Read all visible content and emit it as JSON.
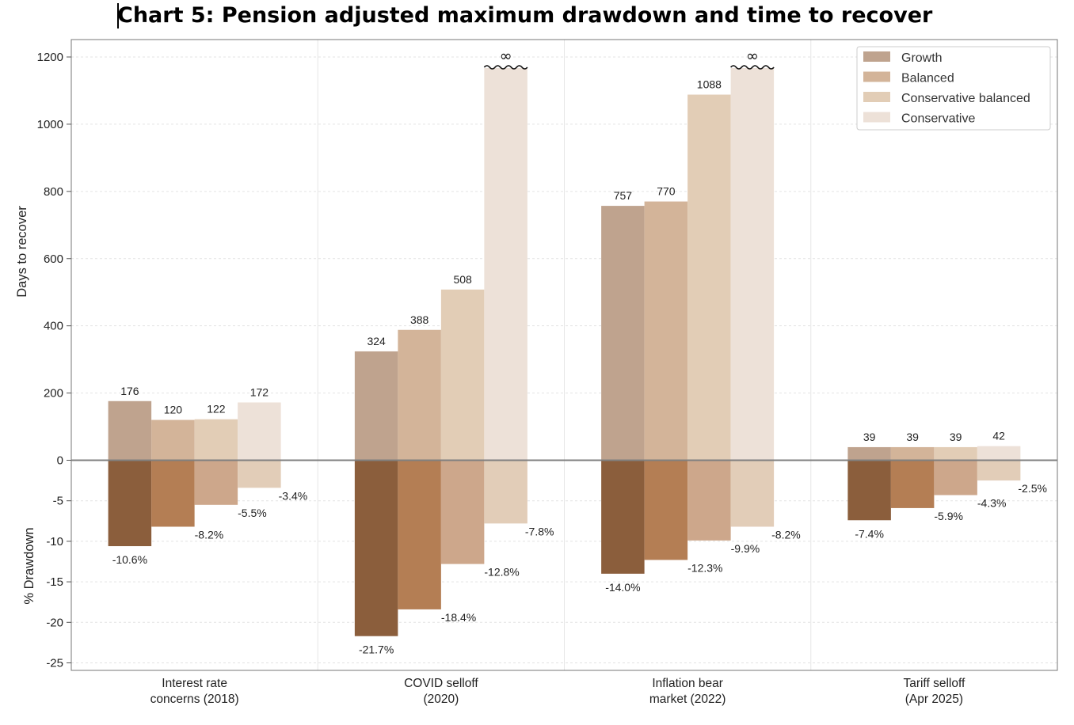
{
  "title": "Chart 5: Pension adjusted maximum drawdown and time to recover",
  "chart_data": {
    "type": "bar",
    "categories": [
      [
        "Interest rate",
        "concerns (2018)"
      ],
      [
        "COVID selloff",
        "(2020)"
      ],
      [
        "Inflation bear",
        "market (2022)"
      ],
      [
        "Tariff selloff",
        "(Apr 2025)"
      ]
    ],
    "series": [
      {
        "name": "Growth",
        "days": [
          176,
          324,
          757,
          39
        ],
        "drawdown": [
          -10.6,
          -21.7,
          -14.0,
          -7.4
        ],
        "color_top": "#bfa38e",
        "color_bottom": "#8b5e3c"
      },
      {
        "name": "Balanced",
        "days": [
          120,
          388,
          770,
          39
        ],
        "drawdown": [
          -8.2,
          -18.4,
          -12.3,
          -5.9
        ],
        "color_top": "#d3b499",
        "color_bottom": "#b47e54"
      },
      {
        "name": "Conservative balanced",
        "days": [
          122,
          508,
          1088,
          39
        ],
        "drawdown": [
          -5.5,
          -12.8,
          -9.9,
          -4.3
        ],
        "color_top": "#e2cdb6",
        "color_bottom": "#cda78b"
      },
      {
        "name": "Conservative",
        "days": [
          172,
          "∞",
          "∞",
          42
        ],
        "drawdown": [
          -3.4,
          -7.8,
          -8.2,
          -2.5
        ],
        "color_top": "#ede1d8",
        "color_bottom": "#e2cdb8"
      }
    ],
    "days_labels": [
      [
        "176",
        "324",
        "757",
        "39"
      ],
      [
        "120",
        "388",
        "770",
        "39"
      ],
      [
        "122",
        "508",
        "1088",
        "39"
      ],
      [
        "172",
        "∞",
        "∞",
        "42"
      ]
    ],
    "drawdown_labels": [
      [
        "-10.6%",
        "-21.7%",
        "-14.0%",
        "-7.4%"
      ],
      [
        "-8.2%",
        "-18.4%",
        "-12.3%",
        "-5.9%"
      ],
      [
        "-5.5%",
        "-12.8%",
        "-9.9%",
        "-4.3%"
      ],
      [
        "-3.4%",
        "-7.8%",
        "-8.2%",
        "-2.5%"
      ]
    ],
    "upper_axis": {
      "label": "Days to recover",
      "ticks": [
        "0",
        "200",
        "400",
        "600",
        "800",
        "1000",
        "1200"
      ],
      "tick_values": [
        0,
        200,
        400,
        600,
        800,
        1000,
        1200
      ],
      "ylim": [
        0,
        1250
      ]
    },
    "lower_axis": {
      "label": "% Drawdown",
      "ticks": [
        "-5",
        "-10",
        "-15",
        "-20",
        "-25"
      ],
      "tick_values": [
        -5,
        -10,
        -15,
        -20,
        -25
      ],
      "ylim": [
        -26,
        0
      ]
    },
    "legend_position": "top-right",
    "grid": true
  }
}
